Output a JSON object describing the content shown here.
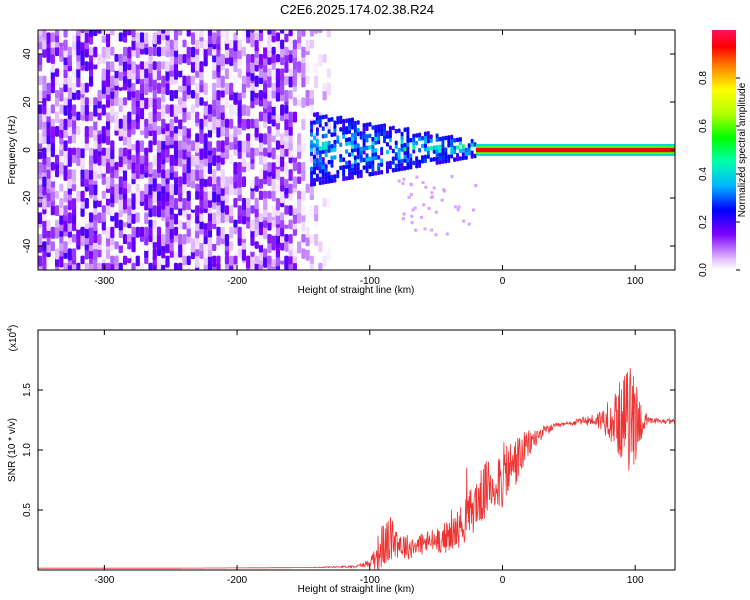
{
  "title": "C2E6.2025.174.02.38.R24",
  "colors": {
    "snr_line": "#ee3333",
    "ridge": "#ff2200",
    "axis": "#000000"
  },
  "chart_data": [
    {
      "type": "heatmap",
      "xlabel": "Height of straight line (km)",
      "ylabel": "Frequency (Hz)",
      "xlim": [
        -350,
        130
      ],
      "ylim": [
        -50,
        50
      ],
      "xticks": [
        -300,
        -200,
        -100,
        0,
        100
      ],
      "xtick_labels": [
        "-300",
        "-200",
        "-100",
        "0",
        "100"
      ],
      "yticks": [
        -40,
        -20,
        0,
        20,
        40
      ],
      "ytick_labels": [
        "-40",
        "-20",
        "0",
        "20",
        "40"
      ],
      "colorbar": {
        "label": "Normalized spectral amplitude",
        "range": [
          0,
          1
        ],
        "ticks": [
          0.0,
          0.2,
          0.4,
          0.6,
          0.8
        ],
        "tick_labels": [
          "0.0",
          "0.2",
          "0.4",
          "0.6",
          "0.8"
        ],
        "colormap": "rainbow"
      },
      "description_regions": [
        {
          "x_range": [
            -350,
            -140
          ],
          "f_range": [
            -50,
            50
          ],
          "amplitude_range": [
            0.0,
            0.2
          ]
        },
        {
          "x_range": [
            -145,
            -20
          ],
          "f_range": [
            -10,
            12
          ],
          "amplitude_range": [
            0.2,
            0.45
          ]
        },
        {
          "x_range": [
            -20,
            130
          ],
          "f_range": [
            -1,
            1
          ],
          "amplitude_range": [
            0.8,
            1.0
          ]
        }
      ],
      "grid": false
    },
    {
      "type": "line",
      "xlabel": "Height of straight line (km)",
      "ylabel": "SNR (10 * v/v)",
      "y_multiplier_label": "(x10",
      "y_multiplier_exp": "4",
      "y_multiplier_close": ")",
      "xlim": [
        -350,
        130
      ],
      "ylim": [
        0,
        2.0
      ],
      "xticks": [
        -300,
        -200,
        -100,
        0,
        100
      ],
      "xtick_labels": [
        "-300",
        "-200",
        "-100",
        "0",
        "100"
      ],
      "yticks": [
        0.5,
        1.0,
        1.5
      ],
      "ytick_labels": [
        "0.5",
        "1.0",
        "1.5"
      ],
      "series": [
        {
          "color": "#ee3333",
          "x": [
            -350,
            -250,
            -150,
            -110,
            -100,
            -95,
            -90,
            -85,
            -80,
            -75,
            -70,
            -60,
            -50,
            -40,
            -30,
            -20,
            -10,
            0,
            10,
            20,
            30,
            40,
            50,
            60,
            70,
            80,
            90,
            95,
            100,
            105,
            110,
            120,
            130
          ],
          "y": [
            0.015,
            0.015,
            0.02,
            0.03,
            0.06,
            0.13,
            0.2,
            0.25,
            0.25,
            0.2,
            0.19,
            0.22,
            0.25,
            0.28,
            0.38,
            0.55,
            0.7,
            0.78,
            0.9,
            1.05,
            1.15,
            1.2,
            1.22,
            1.24,
            1.25,
            1.25,
            1.25,
            1.26,
            1.27,
            1.24,
            1.24,
            1.24,
            1.24
          ],
          "noise": [
            0,
            0,
            0,
            0.01,
            0.03,
            0.14,
            0.2,
            0.2,
            0.15,
            0.12,
            0.1,
            0.1,
            0.11,
            0.14,
            0.18,
            0.22,
            0.25,
            0.28,
            0.22,
            0.12,
            0.05,
            0.02,
            0.02,
            0.03,
            0.06,
            0.15,
            0.35,
            0.45,
            0.4,
            0.15,
            0.03,
            0.02,
            0.02
          ]
        }
      ],
      "grid": false
    }
  ]
}
